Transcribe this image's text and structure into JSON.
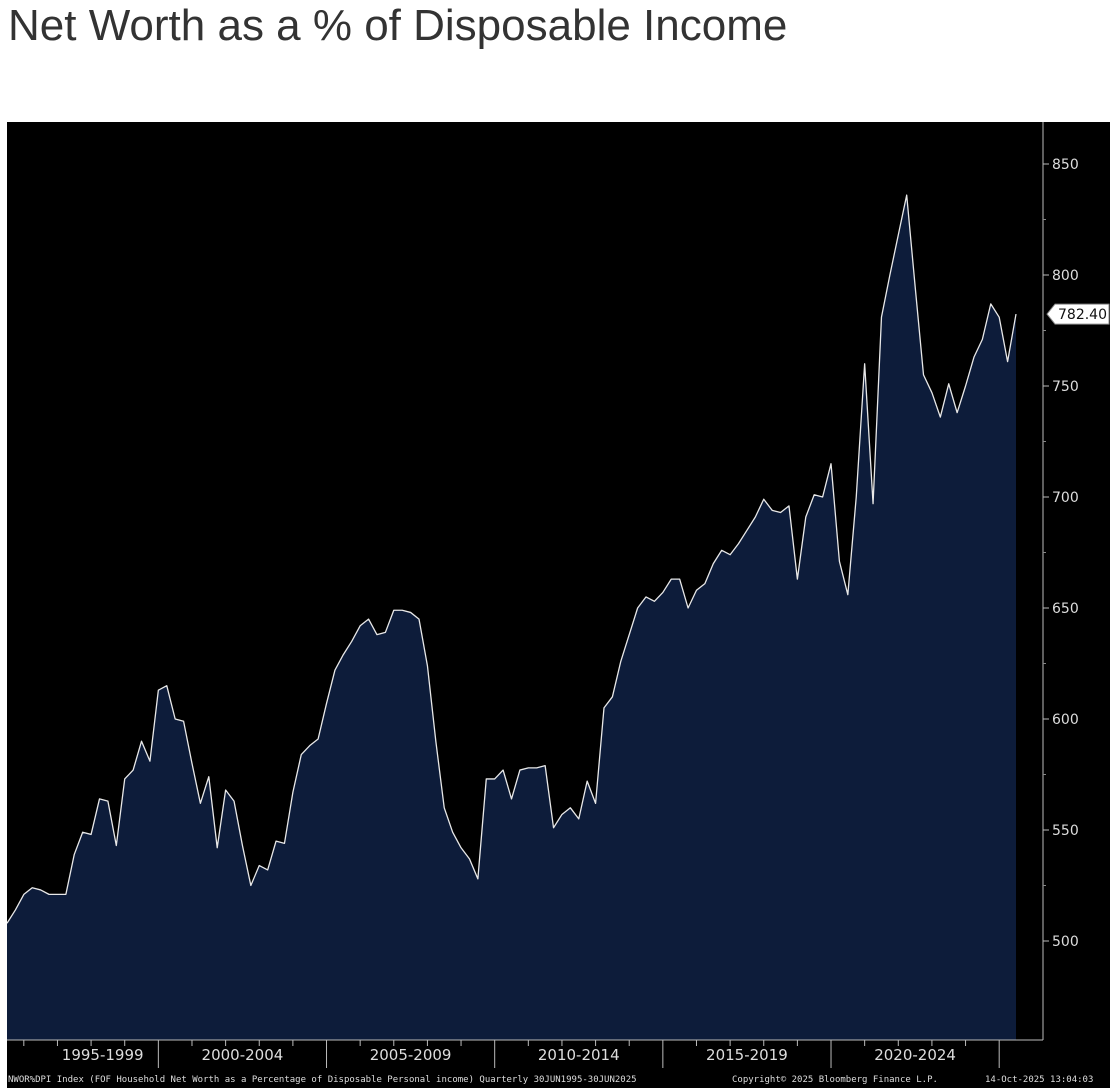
{
  "page": {
    "title": "Net Worth as a % of Disposable Income"
  },
  "colors": {
    "chart_background": "#000000",
    "area_fill": "#0d1c3a",
    "line": "#e8e8e8",
    "axis_text": "#dddddd",
    "last_value_label_bg": "#ffffff",
    "last_value_label_text": "#111111"
  },
  "footer": {
    "description": "NWOR%DPI Index (FOF Household Net Worth as a Percentage of Disposable Personal income) Quarterly 30JUN1995-30JUN2025",
    "copyright": "Copyright© 2025 Bloomberg Finance L.P.",
    "timestamp": "14-Oct-2025 13:04:03"
  },
  "chart_data": {
    "type": "area",
    "title": "",
    "xlabel": "",
    "ylabel": "",
    "frequency": "quarterly",
    "x_range": [
      "1995-06-30",
      "2025-06-30"
    ],
    "x_axis_groups": [
      "1995-1999",
      "2000-2004",
      "2005-2009",
      "2010-2014",
      "2015-2019",
      "2020-2024"
    ],
    "y_ticks": [
      500,
      550,
      600,
      650,
      700,
      750,
      800,
      850
    ],
    "y_tick_labels": [
      "500",
      "550",
      "600",
      "650",
      "700",
      "750",
      "800",
      "850"
    ],
    "ylim": [
      477,
      871
    ],
    "y_axis_position": "right",
    "grid": false,
    "last_value_label": "782.40",
    "series": [
      {
        "values": [
          508,
          514,
          521,
          524,
          523,
          521,
          521,
          521,
          539,
          549,
          548,
          564,
          563,
          543,
          573,
          577,
          590,
          581,
          613,
          615,
          600,
          599,
          580,
          562,
          574,
          542,
          568,
          563,
          543,
          525,
          534,
          532,
          545,
          544,
          567,
          584,
          588,
          591,
          607,
          622,
          629,
          635,
          642,
          645,
          638,
          639,
          649,
          649,
          648,
          645,
          624,
          590,
          560,
          549,
          542,
          537,
          528,
          573,
          573,
          577,
          564,
          577,
          578,
          578,
          579,
          551,
          557,
          560,
          555,
          572,
          562,
          605,
          610,
          626,
          638,
          650,
          655,
          653,
          657,
          663,
          663,
          650,
          658,
          661,
          670,
          676,
          674,
          679,
          685,
          691,
          699,
          694,
          693,
          696,
          663,
          691,
          701,
          700,
          715,
          671,
          656,
          700,
          760,
          697,
          781,
          800,
          818,
          836,
          795,
          755,
          747,
          736,
          751,
          738,
          750,
          763,
          771,
          787,
          781,
          761,
          782.4
        ]
      }
    ]
  }
}
